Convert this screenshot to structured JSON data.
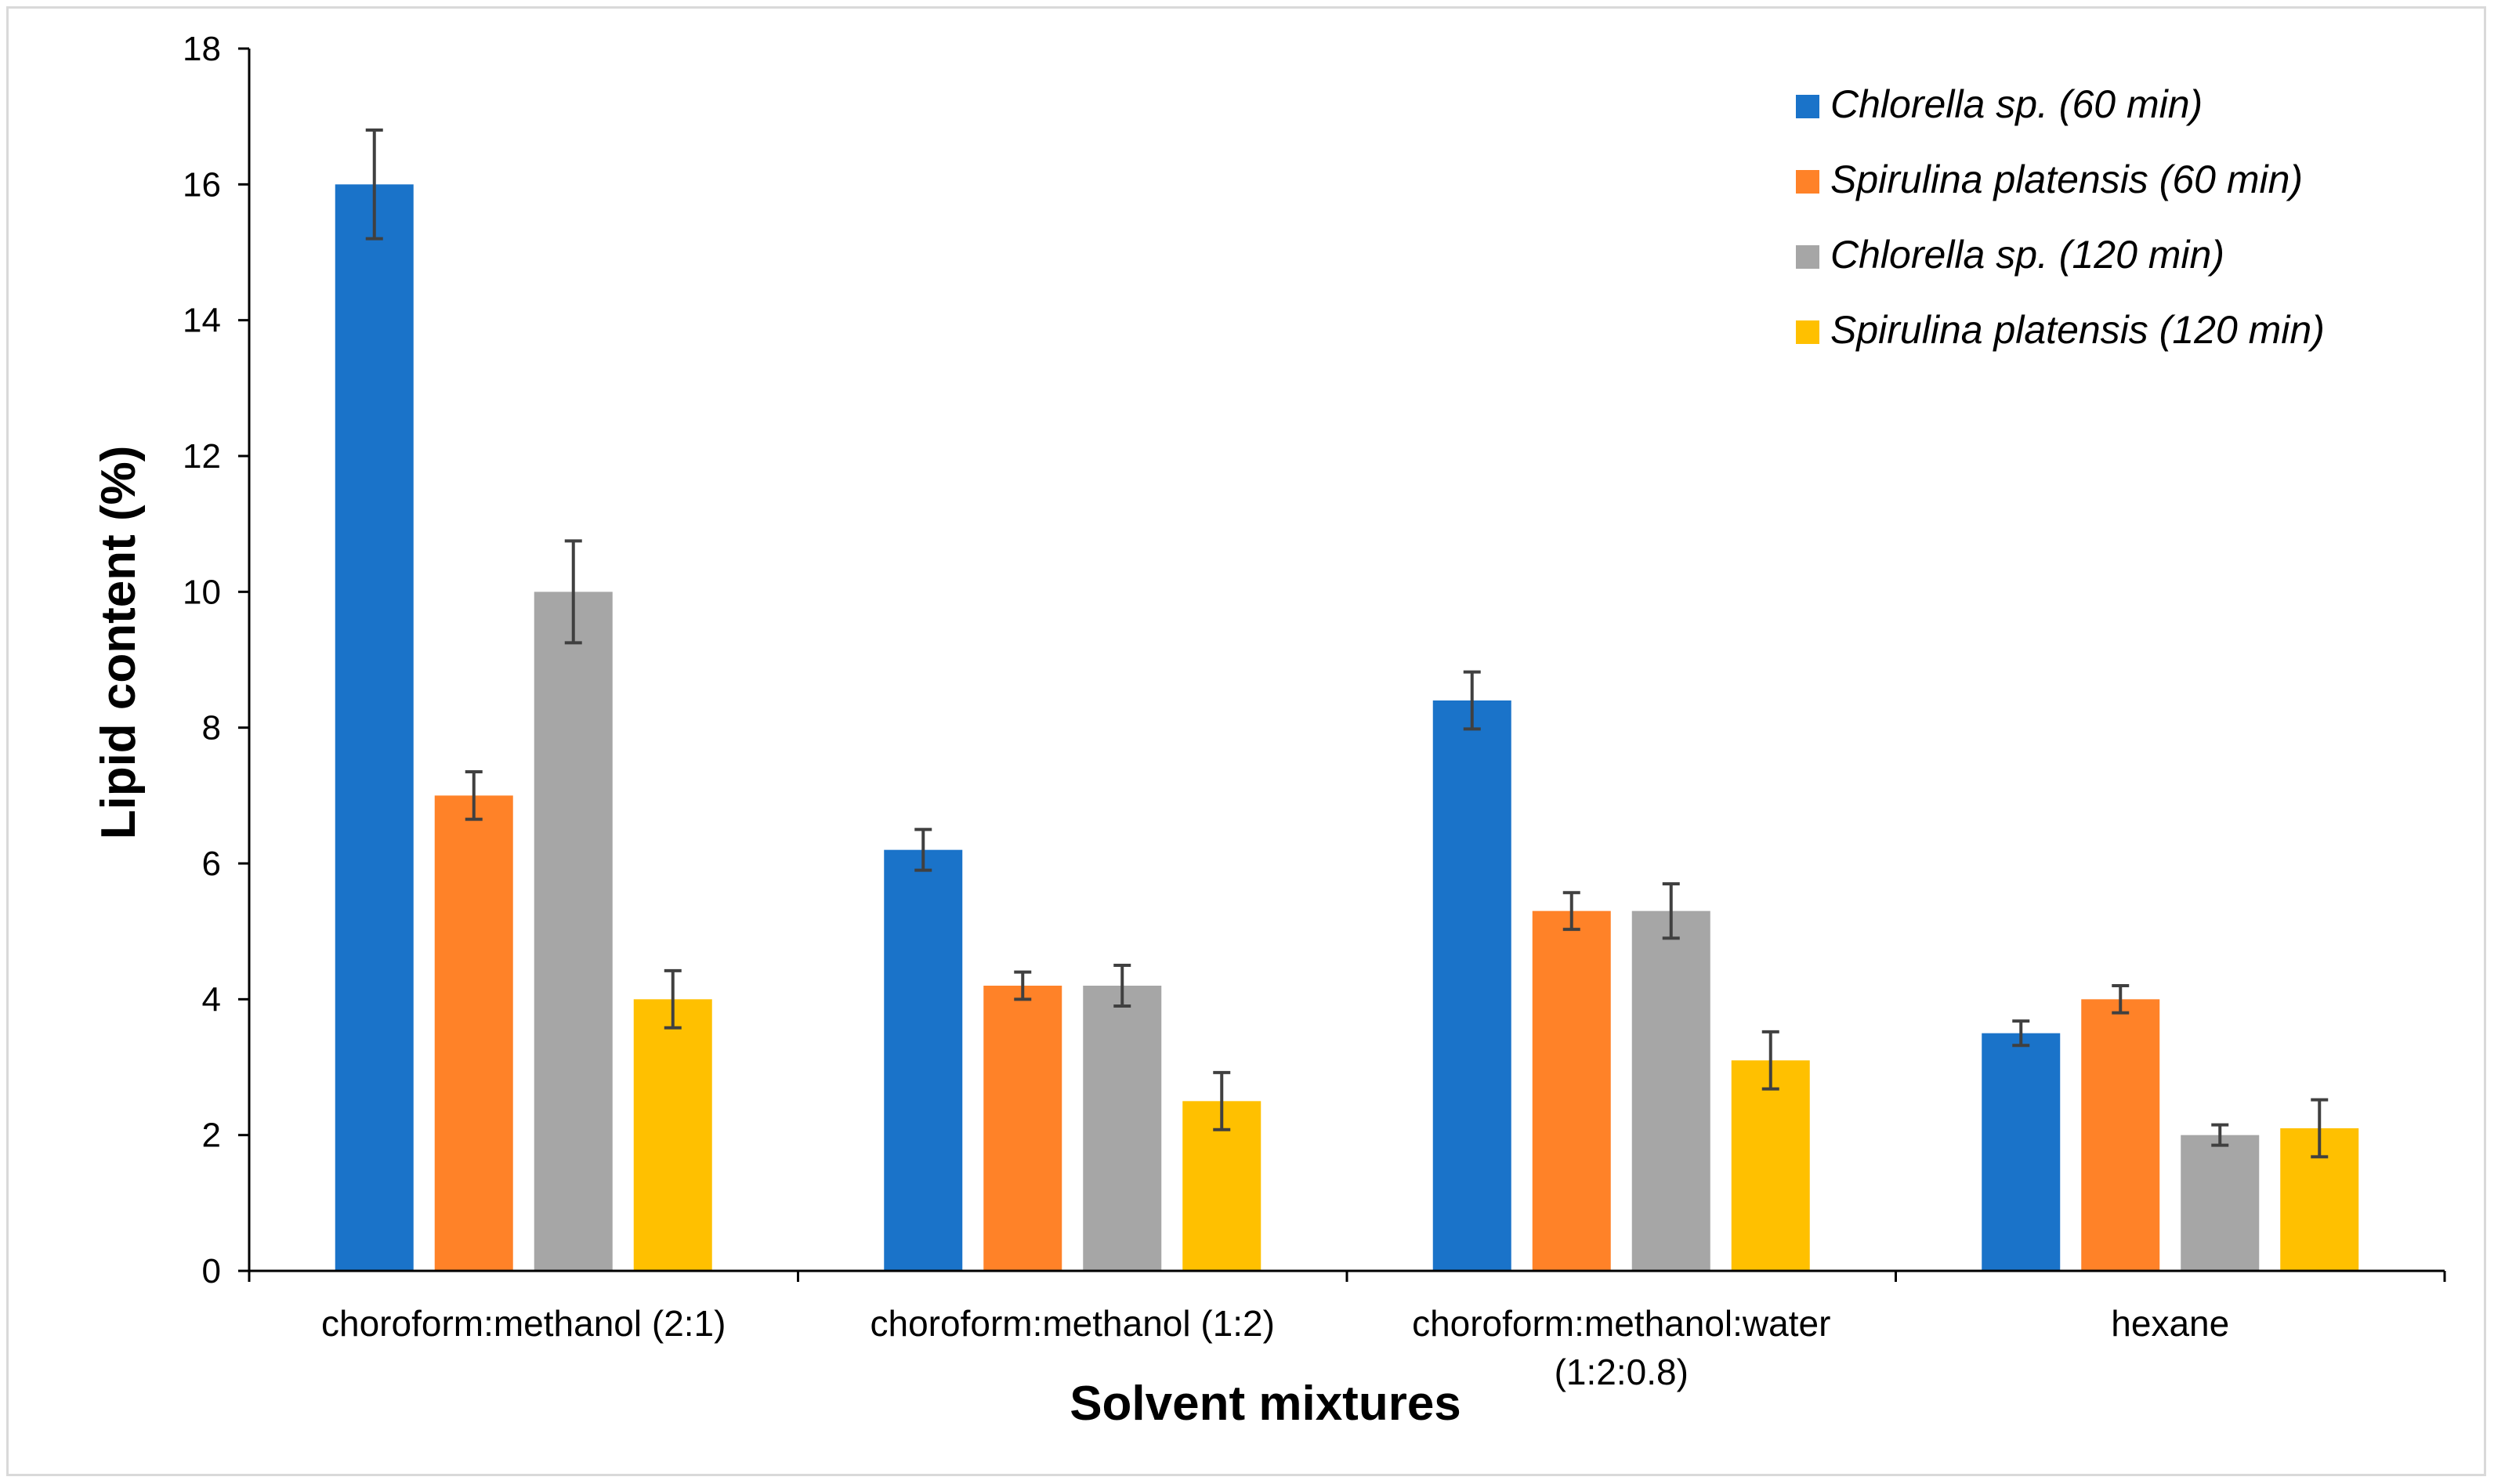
{
  "chart_data": {
    "type": "bar",
    "title": "",
    "xlabel": "Solvent mixtures",
    "ylabel": "Lipid content (%)",
    "ylim": [
      0,
      18
    ],
    "yticks": [
      0,
      2,
      4,
      6,
      8,
      10,
      12,
      14,
      16,
      18
    ],
    "categories": [
      [
        "choroform:methanol (2:1)"
      ],
      [
        "choroform:methanol (1:2)"
      ],
      [
        "choroform:methanol:water",
        "(1:2:0.8)"
      ],
      [
        "hexane"
      ]
    ],
    "series": [
      {
        "name": "Chlorella sp. (60 min)",
        "color": "#1a73c9",
        "values": [
          16,
          6.2,
          8.4,
          3.5
        ],
        "errors": [
          0.8,
          0.3,
          0.42,
          0.18
        ]
      },
      {
        "name": "Spirulina platensis (60 min)",
        "color": "#ff8228",
        "values": [
          7,
          4.2,
          5.3,
          4.0
        ],
        "errors": [
          0.35,
          0.2,
          0.27,
          0.2
        ]
      },
      {
        "name": "Chlorella sp. (120 min)",
        "color": "#a6a6a6",
        "values": [
          10,
          4.2,
          5.3,
          2.0
        ],
        "errors": [
          0.75,
          0.3,
          0.4,
          0.15
        ]
      },
      {
        "name": "Spirulina platensis (120 min)",
        "color": "#ffc000",
        "values": [
          4,
          2.5,
          3.1,
          2.1
        ],
        "errors": [
          0.42,
          0.42,
          0.42,
          0.42
        ]
      }
    ],
    "legend_position": "top-right",
    "error_bars": true,
    "grid": false
  }
}
